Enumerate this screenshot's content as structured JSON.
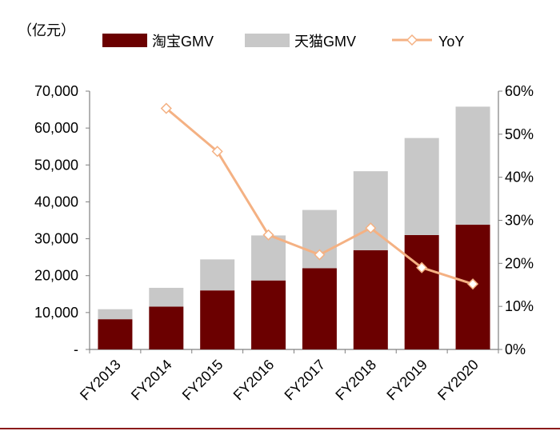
{
  "unit_label": "（亿元）",
  "colors": {
    "taobao": "#6B0000",
    "tmall": "#C8C8C8",
    "yoy": "#F4B183",
    "axis": "#808080",
    "bottom_rule": "#8B1A1A"
  },
  "legend": [
    {
      "label": "淘宝GMV",
      "icon": "bar-swatch",
      "color": "#6B0000"
    },
    {
      "label": "天猫GMV",
      "icon": "bar-swatch",
      "color": "#C8C8C8"
    },
    {
      "label": "YoY",
      "icon": "line-diamond",
      "color": "#F4B183"
    }
  ],
  "chart_data": {
    "type": "bar",
    "stacked": true,
    "categories": [
      "FY2013",
      "FY2014",
      "FY2015",
      "FY2016",
      "FY2017",
      "FY2018",
      "FY2019",
      "FY2020"
    ],
    "series": [
      {
        "name": "淘宝GMV",
        "type": "bar",
        "axis": "left",
        "values": [
          8200,
          11600,
          16000,
          18700,
          22000,
          26900,
          31000,
          33800
        ]
      },
      {
        "name": "天猫GMV",
        "type": "bar",
        "axis": "left",
        "values": [
          2700,
          5100,
          8400,
          12200,
          15800,
          21400,
          26300,
          32000
        ]
      },
      {
        "name": "YoY",
        "type": "line",
        "axis": "right",
        "marker": "diamond",
        "values": [
          null,
          0.56,
          0.46,
          0.266,
          0.22,
          0.282,
          0.19,
          0.152
        ]
      }
    ],
    "y_left": {
      "min": 0,
      "max": 70000,
      "step": 10000,
      "tick_labels": [
        "-",
        "10,000",
        "20,000",
        "30,000",
        "40,000",
        "50,000",
        "60,000",
        "70,000"
      ]
    },
    "y_right": {
      "min": 0,
      "max": 0.6,
      "step": 0.1,
      "tick_labels": [
        "0%",
        "10%",
        "20%",
        "30%",
        "40%",
        "50%",
        "60%"
      ]
    },
    "legend_position": "top",
    "grid": false
  }
}
